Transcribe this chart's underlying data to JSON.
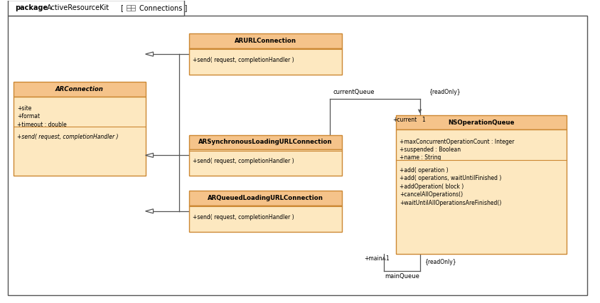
{
  "bg_color": "#ffffff",
  "outer_border": "#888888",
  "header_fill": "#f5c38a",
  "header_border": "#cc8833",
  "body_fill": "#fde8c0",
  "body_border": "#cc8833",
  "classes": {
    "ARURLConnection": {
      "title": "ARURLConnection",
      "title_italic": false,
      "attributes": [],
      "methods": [
        "+send( request, completionHandler )"
      ]
    },
    "ARConnection": {
      "title": "ARConnection",
      "title_italic": true,
      "attributes": [
        "+site",
        "+format",
        "+timeout : double"
      ],
      "methods": [
        "+send( request, completionHandler )"
      ]
    },
    "ARSynchronousLoadingURLConnection": {
      "title": "ARSynchronousLoadingURLConnection",
      "title_italic": false,
      "attributes": [],
      "methods": [
        "+send( request, completionHandler )"
      ]
    },
    "ARQueuedLoadingURLConnection": {
      "title": "ARQueuedLoadingURLConnection",
      "title_italic": false,
      "attributes": [],
      "methods": [
        "+send( request, completionHandler )"
      ]
    },
    "NSOperationQueue": {
      "title": "NSOperationQueue",
      "title_italic": false,
      "attributes": [
        "+maxConcurrentOperationCount : Integer",
        "+suspended : Boolean",
        "+name : String"
      ],
      "methods": [
        "+add( operation )",
        "+add( operations, waitUntilFinished )",
        "+addOperation( block )",
        "+cancelAllOperations()",
        "+waitUntilAllOperationsAreFinished()"
      ]
    }
  },
  "layout": {
    "ARURLConnection": [
      0.315,
      0.755,
      0.255,
      0.135
    ],
    "ARConnection": [
      0.022,
      0.42,
      0.22,
      0.31
    ],
    "ARSynchronousLoadingURLConnection": [
      0.315,
      0.42,
      0.255,
      0.135
    ],
    "ARQueuedLoadingURLConnection": [
      0.315,
      0.235,
      0.255,
      0.135
    ],
    "NSOperationQueue": [
      0.66,
      0.16,
      0.285,
      0.46
    ]
  },
  "pkg_text_bold": "package",
  "pkg_text_name": "ActiveResourceKit",
  "pkg_text_pkg": "Connections",
  "line_color": "#555555",
  "arrow_color": "#666666"
}
